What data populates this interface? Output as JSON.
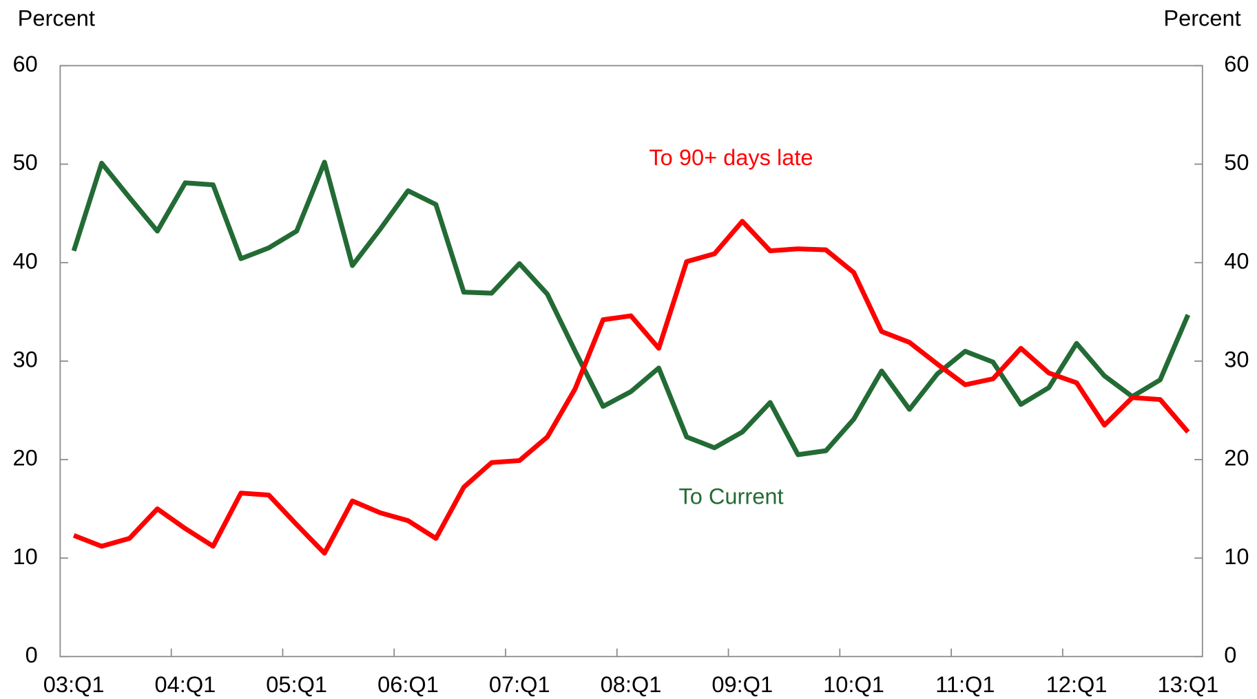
{
  "chart_data": {
    "type": "line",
    "y_label": "Percent",
    "y2_label": "Percent",
    "categories": [
      "03:Q1",
      null,
      null,
      null,
      "04:Q1",
      null,
      null,
      null,
      "05:Q1",
      null,
      null,
      null,
      "06:Q1",
      null,
      null,
      null,
      "07:Q1",
      null,
      null,
      null,
      "08:Q1",
      null,
      null,
      null,
      "09:Q1",
      null,
      null,
      null,
      "10:Q1",
      null,
      null,
      null,
      "11:Q1",
      null,
      null,
      null,
      "12:Q1",
      null,
      null,
      null,
      "13:Q1"
    ],
    "series": [
      {
        "name": "To Current",
        "color": "#236b35",
        "values": [
          41.2,
          50.1,
          46.6,
          43.2,
          48.1,
          47.9,
          40.4,
          41.5,
          43.2,
          50.2,
          39.7,
          43.4,
          47.3,
          45.9,
          37.0,
          36.9,
          39.9,
          36.8,
          31.0,
          25.4,
          26.9,
          29.3,
          22.3,
          21.2,
          22.8,
          25.8,
          20.5,
          20.9,
          24.1,
          29.0,
          25.1,
          28.7,
          31.0,
          29.9,
          25.6,
          27.3,
          31.8,
          28.5,
          26.4,
          28.1,
          34.7
        ]
      },
      {
        "name": "To 90+ days late",
        "color": "#ff0000",
        "values": [
          12.3,
          11.2,
          12.0,
          15.0,
          13.0,
          11.2,
          16.6,
          16.4,
          13.4,
          10.5,
          15.8,
          14.6,
          13.8,
          12.0,
          17.2,
          19.7,
          19.9,
          22.3,
          27.2,
          34.2,
          34.6,
          31.3,
          40.1,
          40.9,
          44.2,
          41.2,
          41.4,
          41.3,
          39.0,
          33.0,
          31.9,
          29.7,
          27.6,
          28.2,
          31.3,
          28.8,
          27.8,
          23.5,
          26.3,
          26.1,
          22.8
        ]
      }
    ],
    "ylim": [
      0,
      60
    ],
    "yticks": [
      0,
      10,
      20,
      30,
      40,
      50,
      60
    ],
    "y2lim": [
      0,
      60
    ],
    "y2ticks": [
      0,
      10,
      20,
      30,
      40,
      50,
      60
    ],
    "grid": false
  }
}
